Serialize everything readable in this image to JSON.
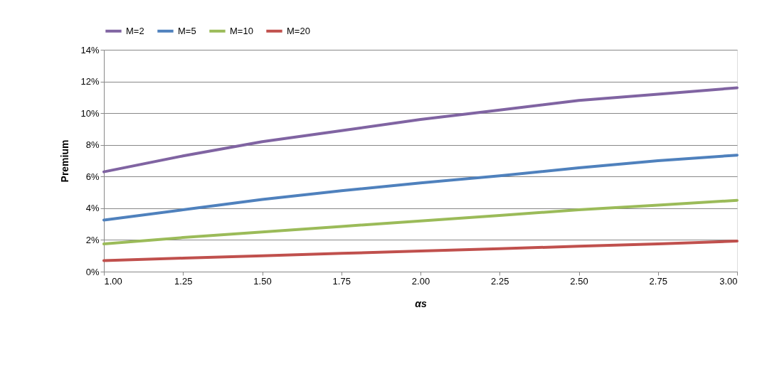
{
  "chart_data": {
    "type": "line",
    "xlabel": "αs",
    "ylabel": "Premium",
    "x": [
      1.0,
      1.25,
      1.5,
      1.75,
      2.0,
      2.25,
      2.5,
      2.75,
      3.0
    ],
    "series": [
      {
        "name": "M=2",
        "color": "#8064a2",
        "values": [
          6.3,
          7.3,
          8.2,
          8.9,
          9.6,
          10.2,
          10.8,
          11.2,
          11.6
        ]
      },
      {
        "name": "M=5",
        "color": "#4f81bd",
        "values": [
          3.25,
          3.9,
          4.55,
          5.1,
          5.6,
          6.05,
          6.55,
          7.0,
          7.35
        ]
      },
      {
        "name": "M=10",
        "color": "#9bbb59",
        "values": [
          1.75,
          2.15,
          2.5,
          2.85,
          3.2,
          3.55,
          3.9,
          4.2,
          4.5
        ]
      },
      {
        "name": "M=20",
        "color": "#c0504d",
        "values": [
          0.7,
          0.85,
          1.0,
          1.15,
          1.3,
          1.45,
          1.6,
          1.75,
          1.93
        ]
      }
    ],
    "xlim": [
      1.0,
      3.0
    ],
    "xticks": [
      {
        "value": 1.0,
        "label": "1.00"
      },
      {
        "value": 1.25,
        "label": "1.25"
      },
      {
        "value": 1.5,
        "label": "1.50"
      },
      {
        "value": 1.75,
        "label": "1.75"
      },
      {
        "value": 2.0,
        "label": "2.00"
      },
      {
        "value": 2.25,
        "label": "2.25"
      },
      {
        "value": 2.5,
        "label": "2.50"
      },
      {
        "value": 2.75,
        "label": "2.75"
      },
      {
        "value": 3.0,
        "label": "3.00"
      }
    ],
    "ylim": [
      0,
      14
    ],
    "yticks": [
      {
        "value": 0,
        "label": "0%"
      },
      {
        "value": 2,
        "label": "2%"
      },
      {
        "value": 4,
        "label": "4%"
      },
      {
        "value": 6,
        "label": "6%"
      },
      {
        "value": 8,
        "label": "8%"
      },
      {
        "value": 10,
        "label": "10%"
      },
      {
        "value": 12,
        "label": "12%"
      },
      {
        "value": 14,
        "label": "14%"
      }
    ],
    "grid": "y",
    "legend": "top",
    "marker": "none",
    "line_style": "solid"
  }
}
